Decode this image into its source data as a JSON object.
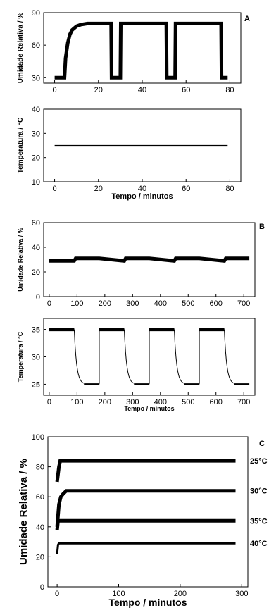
{
  "chart_data": [
    {
      "id": "A-top",
      "panel_letter": "A",
      "type": "line",
      "xlabel": "",
      "ylabel": "Umidade Relativa / %",
      "xlim": [
        -5,
        85
      ],
      "ylim": [
        25,
        90
      ],
      "xticks": [
        0,
        20,
        40,
        60,
        80
      ],
      "yticks": [
        30,
        60,
        90
      ],
      "series": [
        {
          "style": "thick",
          "x": [
            0,
            4.5,
            5,
            6,
            7,
            8,
            10,
            12,
            15,
            20,
            25.8,
            26,
            30,
            30.2,
            51,
            51.2,
            55,
            55.2,
            76,
            76.2,
            79
          ],
          "y": [
            30,
            30,
            48,
            62,
            70,
            74,
            77.5,
            79,
            80,
            80,
            80,
            30,
            30,
            80,
            80,
            30,
            30,
            80,
            80,
            30,
            30
          ]
        }
      ]
    },
    {
      "id": "A-bottom",
      "type": "line",
      "xlabel": "Tempo / minutos",
      "ylabel": "Temperatura / °C",
      "xlim": [
        -5,
        85
      ],
      "ylim": [
        10,
        40
      ],
      "xticks": [
        0,
        20,
        40,
        60,
        80
      ],
      "yticks": [
        10,
        20,
        30,
        40
      ],
      "series": [
        {
          "style": "thin",
          "x": [
            0,
            79
          ],
          "y": [
            25,
            25
          ]
        }
      ]
    },
    {
      "id": "B-top",
      "panel_letter": "B",
      "type": "line",
      "xlabel": "",
      "ylabel": "Umidade Relativa / %",
      "xlim": [
        -20,
        740
      ],
      "ylim": [
        0,
        60
      ],
      "xticks": [
        0,
        100,
        200,
        300,
        400,
        500,
        600,
        700
      ],
      "yticks": [
        0,
        20,
        40,
        60
      ],
      "series": [
        {
          "style": "thick",
          "x": [
            0,
            90,
            95,
            180,
            270,
            275,
            360,
            450,
            455,
            540,
            630,
            635,
            720
          ],
          "y": [
            29,
            29,
            31,
            31,
            29,
            31,
            31,
            29,
            31,
            31,
            29,
            31,
            31
          ]
        }
      ]
    },
    {
      "id": "B-bottom",
      "type": "line",
      "xlabel": "Tempo / minutos",
      "ylabel": "Temperatura / °C",
      "xlim": [
        -20,
        740
      ],
      "ylim": [
        23,
        37
      ],
      "xticks": [
        0,
        100,
        200,
        300,
        400,
        500,
        600,
        700
      ],
      "yticks": [
        25,
        30,
        35
      ],
      "series": [
        {
          "style": "mixed",
          "x": [
            0,
            720
          ],
          "y": [
            35,
            35
          ],
          "cycles": [
            {
              "fall_start": 90,
              "low_start": 125,
              "rise": 180
            },
            {
              "fall_start": 270,
              "low_start": 305,
              "rise": 360
            },
            {
              "fall_start": 450,
              "low_start": 485,
              "rise": 540
            },
            {
              "fall_start": 630,
              "low_start": 665,
              "rise": 720
            }
          ],
          "high": 35,
          "low": 25
        }
      ]
    },
    {
      "id": "C",
      "panel_letter": "C",
      "type": "line",
      "xlabel": "Tempo / minutos",
      "ylabel": "Umidade Relativa / %",
      "xlim": [
        -15,
        310
      ],
      "ylim": [
        0,
        100
      ],
      "xticks": [
        0,
        100,
        200,
        300
      ],
      "yticks": [
        0,
        20,
        40,
        60,
        80,
        100
      ],
      "series": [
        {
          "name": "25°C",
          "style": "thick",
          "x": [
            0,
            3,
            5,
            8,
            290
          ],
          "y": [
            70,
            80,
            84,
            84,
            84
          ]
        },
        {
          "name": "30°C",
          "style": "thick",
          "x": [
            0,
            3,
            6,
            10,
            15,
            290
          ],
          "y": [
            40,
            55,
            60,
            62,
            64,
            64
          ]
        },
        {
          "name": "35°C",
          "style": "thick",
          "x": [
            0,
            1.5,
            3,
            290
          ],
          "y": [
            38,
            44,
            44,
            44
          ]
        },
        {
          "name": "40°C",
          "style": "medium",
          "x": [
            0,
            1.5,
            3,
            290
          ],
          "y": [
            22,
            28,
            29,
            29
          ]
        }
      ]
    }
  ]
}
